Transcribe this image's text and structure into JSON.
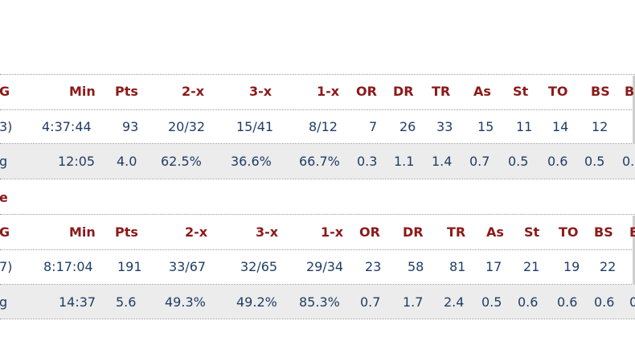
{
  "table1": {
    "headers": [
      "G",
      "Min",
      "Pts",
      "2-x",
      "3-x",
      "1-x",
      "OR",
      "DR",
      "TR",
      "As",
      "St",
      "TO",
      "BS",
      "B"
    ],
    "totals": [
      "3)",
      "4:37:44",
      "93",
      "20/32",
      "15/41",
      "8/12",
      "7",
      "26",
      "33",
      "15",
      "11",
      "14",
      "12",
      ""
    ],
    "avg": [
      "g",
      "12:05",
      "4.0",
      "62.5%",
      "36.6%",
      "66.7%",
      "0.3",
      "1.1",
      "1.4",
      "0.7",
      "0.5",
      "0.6",
      "0.5",
      "0."
    ]
  },
  "section2_label": "e",
  "table2": {
    "headers": [
      "G",
      "Min",
      "Pts",
      "2-x",
      "3-x",
      "1-x",
      "OR",
      "DR",
      "TR",
      "As",
      "St",
      "TO",
      "BS",
      "B"
    ],
    "totals": [
      "7)",
      "8:17:04",
      "191",
      "33/67",
      "32/65",
      "29/34",
      "23",
      "58",
      "81",
      "17",
      "21",
      "19",
      "22",
      ""
    ],
    "avg": [
      "g",
      "14:37",
      "5.6",
      "49.3%",
      "49.2%",
      "85.3%",
      "0.7",
      "1.7",
      "2.4",
      "0.5",
      "0.6",
      "0.6",
      "0.6",
      "0"
    ]
  }
}
